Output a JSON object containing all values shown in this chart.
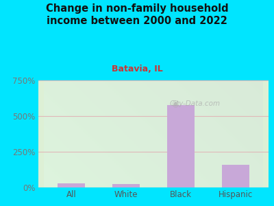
{
  "title": "Change in non-family household\nincome between 2000 and 2022",
  "subtitle": "Batavia, IL",
  "categories": [
    "All",
    "White",
    "Black",
    "Hispanic"
  ],
  "values": [
    30,
    25,
    575,
    160
  ],
  "bar_color": "#c8a8d8",
  "title_color": "#111111",
  "subtitle_color": "#cc3333",
  "ytick_color": "#777777",
  "xtick_color": "#555555",
  "background_outer": "#00e5ff",
  "background_inner_topleft": "#d5edcc",
  "background_inner_topright": "#e8f5f0",
  "grid_color": "#e0b8b8",
  "watermark": "City-Data.com",
  "ylim": [
    0,
    750
  ],
  "yticks": [
    0,
    250,
    500,
    750
  ],
  "ytick_labels": [
    "0%",
    "250%",
    "500%",
    "750%"
  ]
}
